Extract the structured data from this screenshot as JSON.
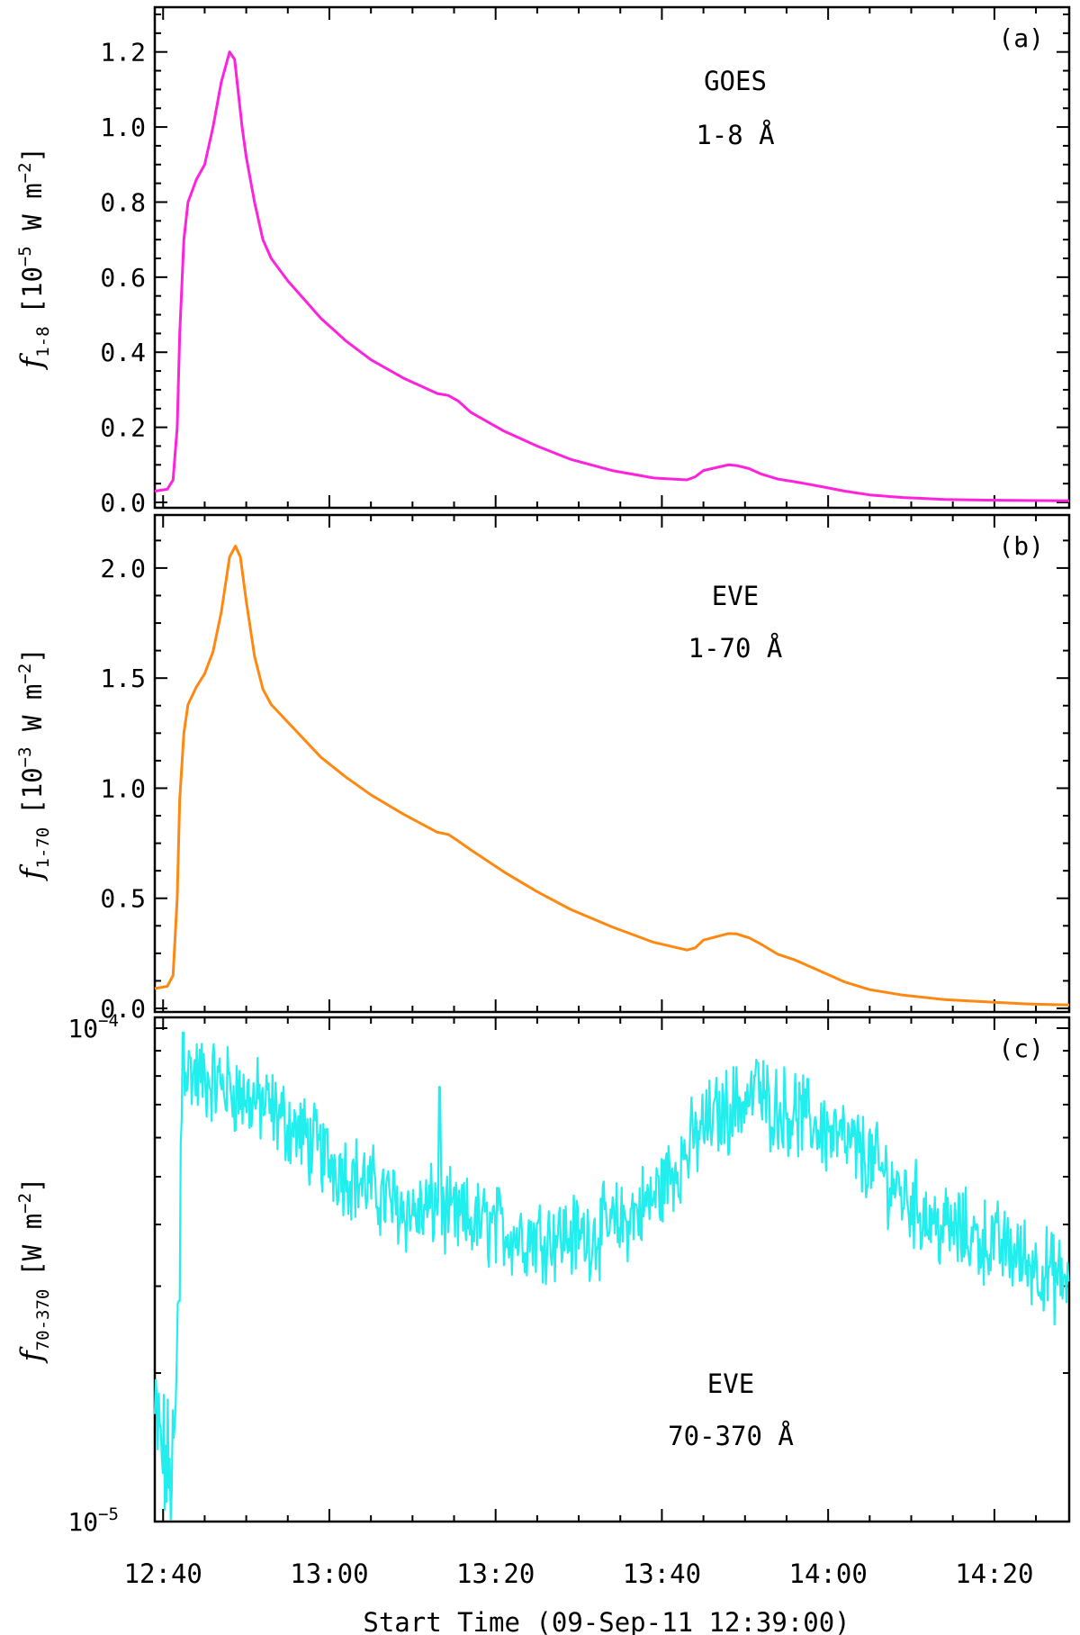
{
  "chart_data": [
    {
      "type": "line",
      "panel_label": "(a)",
      "annotation": [
        "GOES",
        "1-8 Å"
      ],
      "ylabel": {
        "symbol": "f",
        "subscript": "1-8",
        "unit_open": "[10",
        "exponent": "−5",
        "unit_mid": " W m",
        "unit_exp": "−2",
        "unit_close": "]"
      },
      "color": "#ff22dd",
      "yscale": "linear",
      "ylim": [
        0,
        1.3
      ],
      "yticks": [
        0.0,
        0.2,
        0.4,
        0.6,
        0.8,
        1.0,
        1.2
      ],
      "ytick_labels": [
        "0.0",
        "0.2",
        "0.4",
        "0.6",
        "0.8",
        "1.0",
        "1.2"
      ],
      "x_minutes_after_1239": [
        0,
        1.5,
        2.2,
        2.7,
        3.0,
        3.5,
        4.0,
        5.0,
        6.0,
        7.0,
        8.0,
        9.0,
        9.6,
        10.0,
        10.5,
        11.0,
        12.0,
        13.0,
        14.0,
        16.0,
        18.0,
        20.0,
        23.0,
        26.0,
        30.0,
        34.0,
        35.3,
        36.5,
        38.0,
        42.0,
        46.0,
        50.0,
        55.0,
        60.0,
        64.0,
        65.0,
        66.0,
        68.0,
        69.0,
        70.0,
        71.5,
        73.0,
        75.0,
        77.0,
        80.0,
        83.0,
        86.0,
        90.0,
        95.0,
        100.0,
        105.0,
        110.0
      ],
      "y": [
        0.03,
        0.035,
        0.06,
        0.2,
        0.45,
        0.7,
        0.8,
        0.86,
        0.9,
        1.0,
        1.12,
        1.2,
        1.18,
        1.1,
        1.0,
        0.92,
        0.8,
        0.7,
        0.65,
        0.59,
        0.54,
        0.49,
        0.43,
        0.38,
        0.33,
        0.29,
        0.285,
        0.27,
        0.24,
        0.19,
        0.15,
        0.115,
        0.085,
        0.065,
        0.06,
        0.068,
        0.085,
        0.095,
        0.1,
        0.098,
        0.09,
        0.075,
        0.062,
        0.055,
        0.043,
        0.03,
        0.02,
        0.013,
        0.008,
        0.006,
        0.005,
        0.004
      ]
    },
    {
      "type": "line",
      "panel_label": "(b)",
      "annotation": [
        "EVE",
        "1-70 Å"
      ],
      "ylabel": {
        "symbol": "f",
        "subscript": "1-70",
        "unit_open": "[10",
        "exponent": "−3",
        "unit_mid": " W m",
        "unit_exp": "−2",
        "unit_close": "]"
      },
      "color": "#ff8811",
      "yscale": "linear",
      "ylim": [
        0,
        2.2
      ],
      "yticks": [
        0.0,
        0.5,
        1.0,
        1.5,
        2.0
      ],
      "ytick_labels": [
        "0.0",
        "0.5",
        "1.0",
        "1.5",
        "2.0"
      ],
      "x_minutes_after_1239": [
        0,
        1.5,
        2.2,
        2.7,
        3.0,
        3.5,
        4.0,
        5.0,
        6.0,
        7.0,
        8.0,
        9.0,
        9.7,
        10.3,
        11.0,
        12.0,
        13.0,
        14.0,
        16.0,
        18.0,
        20.0,
        23.0,
        26.0,
        30.0,
        34.0,
        35.3,
        36.5,
        38.0,
        42.0,
        46.0,
        50.0,
        55.0,
        60.0,
        64.0,
        65.0,
        66.0,
        68.0,
        69.0,
        70.0,
        71.5,
        73.0,
        75.0,
        77.0,
        80.0,
        83.0,
        86.0,
        90.0,
        95.0,
        100.0,
        105.0,
        110.0
      ],
      "y": [
        0.09,
        0.1,
        0.15,
        0.5,
        0.95,
        1.25,
        1.38,
        1.46,
        1.52,
        1.62,
        1.8,
        2.05,
        2.1,
        2.05,
        1.85,
        1.6,
        1.45,
        1.38,
        1.3,
        1.22,
        1.14,
        1.05,
        0.97,
        0.88,
        0.8,
        0.79,
        0.76,
        0.72,
        0.62,
        0.53,
        0.45,
        0.37,
        0.3,
        0.265,
        0.275,
        0.31,
        0.33,
        0.34,
        0.338,
        0.32,
        0.29,
        0.245,
        0.22,
        0.17,
        0.12,
        0.085,
        0.06,
        0.04,
        0.03,
        0.02,
        0.015
      ]
    },
    {
      "type": "line",
      "panel_label": "(c)",
      "annotation": [
        "EVE",
        "70-370 Å"
      ],
      "ylabel": {
        "symbol": "f",
        "subscript": "70-370",
        "unit_open": "[W m",
        "exponent": "",
        "unit_mid": "",
        "unit_exp": "−2",
        "unit_close": "]"
      },
      "color": "#22eeee",
      "yscale": "log",
      "ylim": [
        1e-05,
        0.0001
      ],
      "ytick_labels": [
        {
          "base": "10",
          "exp": "−4"
        },
        {
          "base": "10",
          "exp": "−5"
        }
      ],
      "noise": true,
      "x_minutes_after_1239": [
        0,
        1.0,
        2.0,
        2.6,
        3.0,
        3.4,
        4.0,
        5.0,
        7.0,
        9.0,
        11.0,
        13.0,
        15.0,
        18.0,
        21.0,
        24.0,
        27.0,
        30.0,
        32.0,
        33.0,
        34.0,
        35.0,
        36.0,
        40.0,
        44.0,
        48.0,
        52.0,
        56.0,
        60.0,
        64.0,
        66.0,
        68.0,
        70.0,
        72.0,
        74.0,
        78.0,
        82.0,
        86.0,
        90.0,
        94.0,
        98.0,
        102.0,
        106.0,
        110.0
      ],
      "y": [
        1.6e-05,
        1.35e-05,
        1.2e-05,
        1.6e-05,
        4.5e-05,
        8.5e-05,
        8.2e-05,
        8e-05,
        7.8e-05,
        7.6e-05,
        7.2e-05,
        7e-05,
        6.6e-05,
        6e-05,
        5.4e-05,
        5e-05,
        4.6e-05,
        4.3e-05,
        4.2e-05,
        4.3e-05,
        4.4e-05,
        4.2e-05,
        4.1e-05,
        4e-05,
        3.8e-05,
        3.8e-05,
        3.8e-05,
        4e-05,
        4.5e-05,
        5.6e-05,
        6.3e-05,
        6.7e-05,
        7e-05,
        7.3e-05,
        7e-05,
        6.6e-05,
        6e-05,
        5.4e-05,
        4.6e-05,
        4e-05,
        3.8e-05,
        3.6e-05,
        3.3e-05,
        3e-05
      ],
      "spikes": [
        {
          "x": 2.9,
          "y": 2.8e-05
        },
        {
          "x": 3.4,
          "y": 9.8e-05
        },
        {
          "x": 34.3,
          "y": 7.6e-05
        },
        {
          "x": 72.5,
          "y": 8.5e-05
        }
      ]
    }
  ],
  "xaxis": {
    "label": "Start Time (09-Sep-11 12:39:00)",
    "xlim_minutes": [
      0,
      110
    ],
    "ticks_minutes": [
      1,
      21,
      41,
      61,
      81,
      101
    ],
    "tick_labels": [
      "12:40",
      "13:00",
      "13:20",
      "13:40",
      "14:00",
      "14:20"
    ]
  }
}
